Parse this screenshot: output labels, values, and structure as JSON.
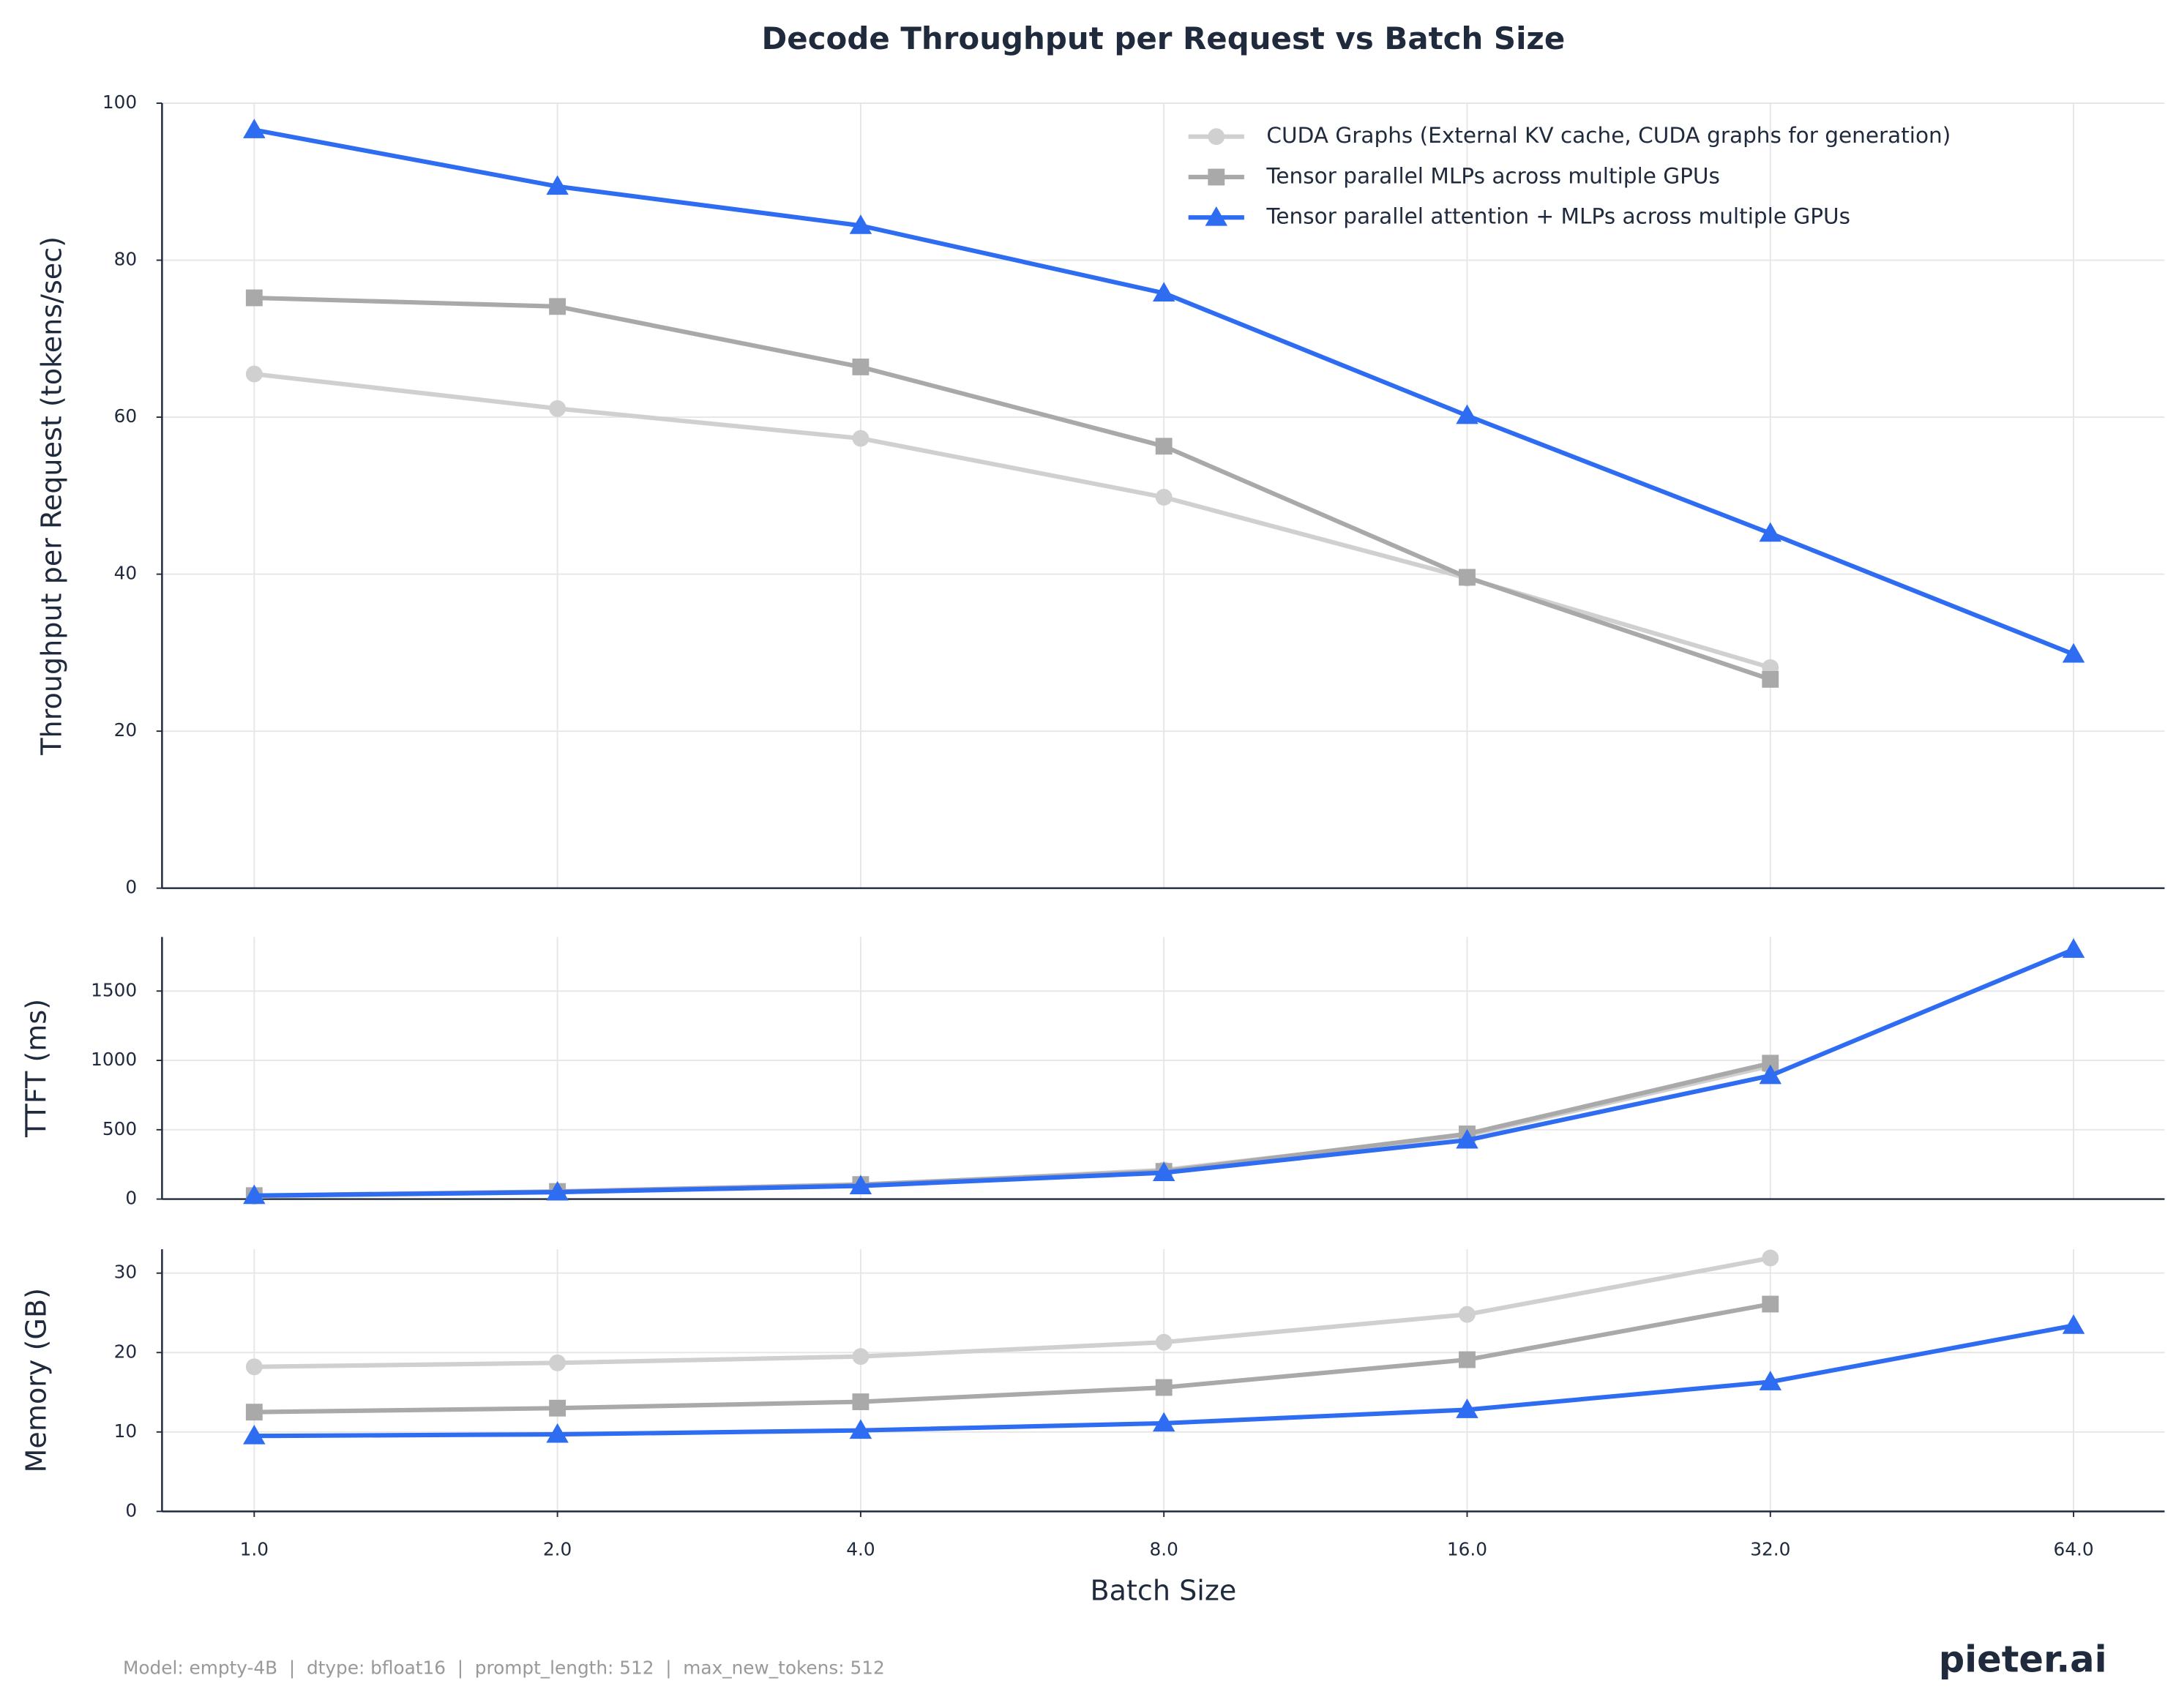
{
  "chart_data": [
    {
      "type": "line",
      "title": "Decode Throughput per Request vs Batch Size",
      "ylabel": "Throughput per Request (tokens/sec)",
      "x": [
        1,
        2,
        4,
        8,
        16,
        32,
        64
      ],
      "series": [
        {
          "name": "CUDA Graphs (External KV cache, CUDA graphs for generation)",
          "color": "#d0d0d0",
          "marker": "circle",
          "values": [
            65.5,
            61.1,
            57.3,
            49.8,
            39.5,
            28.1,
            null
          ]
        },
        {
          "name": "Tensor parallel MLPs across multiple GPUs",
          "color": "#a9a9a9",
          "marker": "square",
          "values": [
            75.2,
            74.1,
            66.4,
            56.3,
            39.6,
            26.6,
            null
          ]
        },
        {
          "name": "Tensor parallel attention + MLPs across multiple GPUs",
          "color": "#2e6cf2",
          "marker": "triangle",
          "values": [
            96.6,
            89.4,
            84.4,
            75.8,
            60.2,
            45.2,
            29.8
          ]
        }
      ],
      "ylim": [
        0,
        100
      ],
      "yticks": [
        0,
        20,
        40,
        60,
        80,
        100
      ],
      "grid": true,
      "legend": "upper right"
    },
    {
      "type": "line",
      "ylabel": "TTFT (ms)",
      "x": [
        1,
        2,
        4,
        8,
        16,
        32,
        64
      ],
      "series": [
        {
          "color": "#d0d0d0",
          "marker": "circle",
          "values": [
            20,
            50,
            100,
            210,
            460,
            960,
            null
          ]
        },
        {
          "color": "#a9a9a9",
          "marker": "square",
          "values": [
            25,
            55,
            105,
            200,
            470,
            980,
            null
          ]
        },
        {
          "color": "#2e6cf2",
          "marker": "triangle",
          "values": [
            25,
            50,
            95,
            190,
            425,
            890,
            1800
          ]
        }
      ],
      "ylim": [
        0,
        1890
      ],
      "yticks": [
        0,
        500,
        1000,
        1500
      ],
      "grid": true
    },
    {
      "type": "line",
      "ylabel": "Memory (GB)",
      "xlabel": "Batch Size",
      "x": [
        1,
        2,
        4,
        8,
        16,
        32,
        64
      ],
      "series": [
        {
          "color": "#d0d0d0",
          "marker": "circle",
          "values": [
            18.2,
            18.7,
            19.5,
            21.3,
            24.8,
            31.9,
            null
          ]
        },
        {
          "color": "#a9a9a9",
          "marker": "square",
          "values": [
            12.5,
            13.0,
            13.8,
            15.6,
            19.1,
            26.1,
            null
          ]
        },
        {
          "color": "#2e6cf2",
          "marker": "triangle",
          "values": [
            9.5,
            9.7,
            10.2,
            11.1,
            12.8,
            16.3,
            23.4
          ]
        }
      ],
      "ylim": [
        0,
        33
      ],
      "yticks": [
        0,
        10,
        20,
        30
      ],
      "grid": true,
      "xscale": "log2",
      "xlim": [
        0.81,
        78.8
      ],
      "xticks": [
        {
          "value": 1,
          "label": "1.0"
        },
        {
          "value": 2,
          "label": "2.0"
        },
        {
          "value": 4,
          "label": "4.0"
        },
        {
          "value": 8,
          "label": "8.0"
        },
        {
          "value": 16,
          "label": "16.0"
        },
        {
          "value": 32,
          "label": "32.0"
        },
        {
          "value": 64,
          "label": "64.0"
        }
      ]
    }
  ],
  "footer": {
    "note": "Model: empty-4B  |  dtype: bfloat16  |  prompt_length: 512  |  max_new_tokens: 512",
    "logo": "pieter.ai"
  }
}
